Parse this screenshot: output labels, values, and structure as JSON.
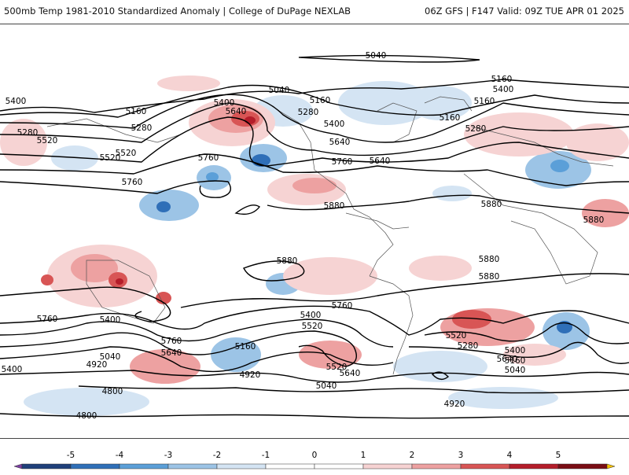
{
  "header": {
    "title": "500mb Temp 1981-2010 Standardized Anomaly | College of DuPage NEXLAB",
    "run_info": "06Z GFS | F147 Valid: 09Z TUE APR 01 2025"
  },
  "contours": {
    "labels": [
      "5040",
      "5040",
      "5160",
      "5160",
      "5160",
      "5160",
      "5160",
      "5280",
      "5280",
      "5280",
      "5280",
      "5400",
      "5400",
      "5400",
      "5400",
      "5400",
      "5400",
      "5520",
      "5520",
      "5520",
      "5520",
      "5520",
      "5640",
      "5640",
      "5640",
      "5640",
      "5640",
      "5640",
      "5760",
      "5760",
      "5760",
      "5760",
      "5760",
      "5760",
      "5880",
      "5880",
      "5880",
      "5880",
      "5880",
      "5880",
      "5160",
      "5040",
      "4920",
      "4920",
      "4800",
      "4800",
      "5040",
      "4920",
      "5400",
      "5280",
      "5040",
      "5160",
      "5400",
      "5520"
    ]
  },
  "colorbar": {
    "ticks": [
      "-5",
      "-4",
      "-3",
      "-2",
      "-1",
      "0",
      "1",
      "2",
      "3",
      "4",
      "5"
    ],
    "colors": {
      "neg_extreme": "#7b3fa0",
      "neg5": "#1f3f7a",
      "neg4": "#2f6fb8",
      "neg3": "#5b9fd8",
      "neg2": "#9cc4e6",
      "neg1": "#d4e4f3",
      "zero": "#ffffff",
      "pos1": "#f6d3d3",
      "pos2": "#eda1a1",
      "pos3": "#d85555",
      "pos4": "#b41d2a",
      "pos5": "#7a0d14",
      "pos_extreme": "#f5c000"
    }
  }
}
